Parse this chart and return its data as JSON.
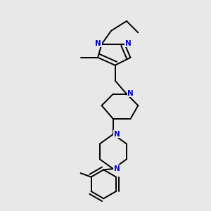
{
  "bg_color": "#e8e8e8",
  "bond_color": "#000000",
  "N_color": "#0000cc",
  "font_size_N": 7.5,
  "line_width": 1.4,
  "fig_size": [
    3.0,
    3.0
  ],
  "dpi": 100,
  "xlim": [
    0.15,
    0.85
  ],
  "ylim": [
    -0.05,
    1.05
  ]
}
